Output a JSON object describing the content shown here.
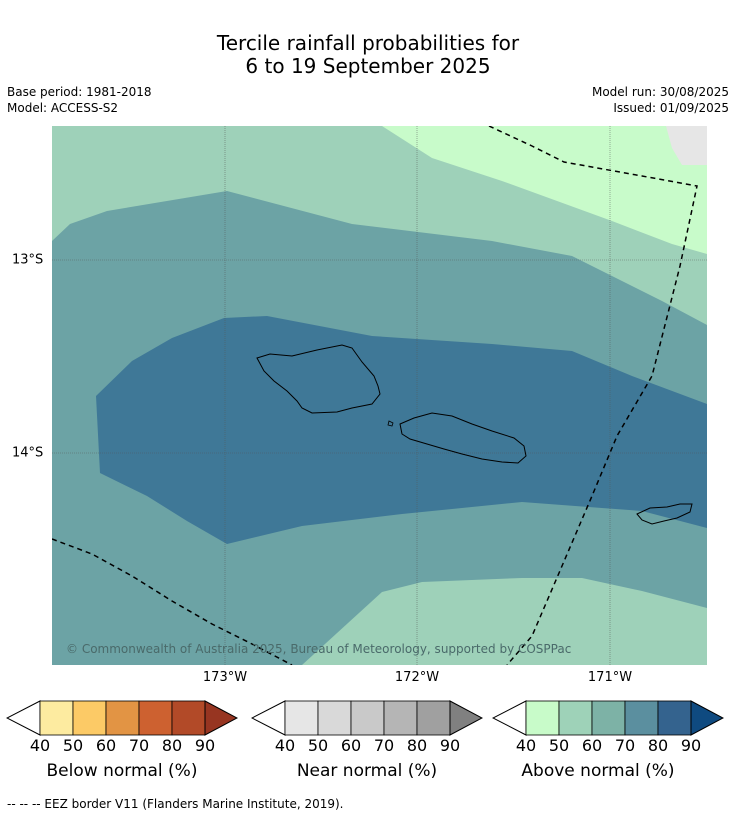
{
  "title_line1": "Tercile rainfall probabilities for",
  "title_line2": "6 to 19 September 2025",
  "base_period": "Base period: 1981-2018",
  "model": "Model: ACCESS-S2",
  "model_run": "Model run: 30/08/2025",
  "issued": "Issued: 01/09/2025",
  "map": {
    "lat_labels": [
      "13°S",
      "14°S"
    ],
    "lon_labels": [
      "173°W",
      "172°W",
      "171°W"
    ],
    "copyright": "© Commonwealth of Australia 2025, Bureau of Meteorology, supported by COSPPac"
  },
  "colorbars": [
    {
      "title": "Below normal (%)",
      "ticks": [
        "40",
        "50",
        "60",
        "70",
        "80",
        "90"
      ],
      "colors": [
        "#fdeba0",
        "#fcca66",
        "#e29444",
        "#cd6130",
        "#b24a28",
        "#973521"
      ]
    },
    {
      "title": "Near normal (%)",
      "ticks": [
        "40",
        "50",
        "60",
        "70",
        "80",
        "90"
      ],
      "colors": [
        "#e6e6e6",
        "#d9d9d9",
        "#c9c9c9",
        "#b5b5b5",
        "#a0a0a0",
        "#808080"
      ]
    },
    {
      "title": "Above normal (%)",
      "ticks": [
        "40",
        "50",
        "60",
        "70",
        "80",
        "90"
      ],
      "colors": [
        "#c8fbc9",
        "#9ed2b8",
        "#7db2a6",
        "#5b8f9f",
        "#34638e",
        "#0f4a80"
      ]
    }
  ],
  "footnote": "--  --  -- EEZ border V11 (Flanders Marine Institute, 2019)."
}
